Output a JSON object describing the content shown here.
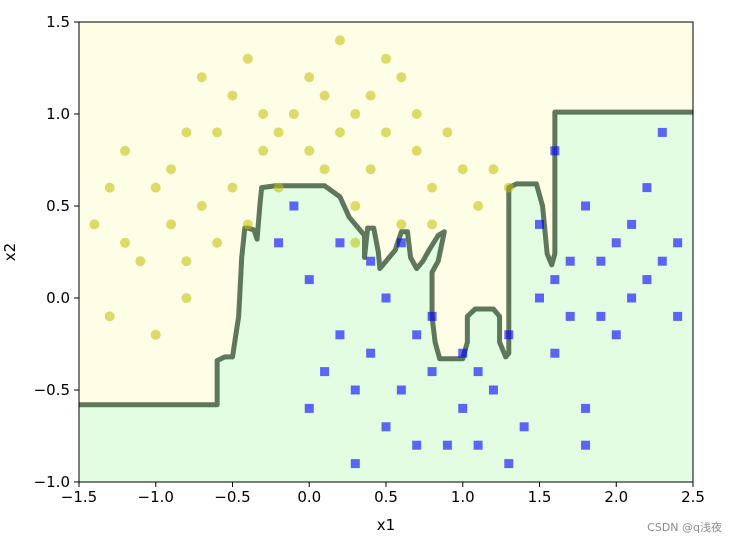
{
  "chart_data": {
    "type": "scatter",
    "title": "",
    "xlabel": "x1",
    "ylabel": "x2",
    "xlim": [
      -1.5,
      2.5
    ],
    "ylim": [
      -1.0,
      1.5
    ],
    "xticks": [
      "−1.5",
      "−1.0",
      "−0.5",
      "0.0",
      "0.5",
      "1.0",
      "1.5",
      "2.0",
      "2.5"
    ],
    "yticks": [
      "−1.0",
      "−0.5",
      "0.0",
      "0.5",
      "1.0",
      "1.5"
    ],
    "xtick_values": [
      -1.5,
      -1.0,
      -0.5,
      0.0,
      0.5,
      1.0,
      1.5,
      2.0,
      2.5
    ],
    "ytick_values": [
      -1.0,
      -0.5,
      0.0,
      0.5,
      1.0,
      1.5
    ],
    "grid": false,
    "legend": "none",
    "regions": [
      {
        "class": "0",
        "color": "#fefde6"
      },
      {
        "class": "1",
        "color": "#e2fde2"
      }
    ],
    "decision_boundary": {
      "color": "#2d4a2d",
      "points": [
        [
          -1.5,
          -0.58
        ],
        [
          -0.6,
          -0.58
        ],
        [
          -0.6,
          -0.34
        ],
        [
          -0.55,
          -0.32
        ],
        [
          -0.5,
          -0.32
        ],
        [
          -0.46,
          -0.1
        ],
        [
          -0.44,
          0.22
        ],
        [
          -0.42,
          0.38
        ],
        [
          -0.4,
          0.38
        ],
        [
          -0.36,
          0.37
        ],
        [
          -0.34,
          0.32
        ],
        [
          -0.32,
          0.52
        ],
        [
          -0.31,
          0.6
        ],
        [
          -0.22,
          0.61
        ],
        [
          0.1,
          0.61
        ],
        [
          0.2,
          0.55
        ],
        [
          0.26,
          0.44
        ],
        [
          0.34,
          0.36
        ],
        [
          0.36,
          0.34
        ],
        [
          0.36,
          0.22
        ],
        [
          0.38,
          0.38
        ],
        [
          0.42,
          0.38
        ],
        [
          0.45,
          0.25
        ],
        [
          0.46,
          0.16
        ],
        [
          0.5,
          0.2
        ],
        [
          0.56,
          0.26
        ],
        [
          0.6,
          0.36
        ],
        [
          0.64,
          0.36
        ],
        [
          0.66,
          0.22
        ],
        [
          0.7,
          0.16
        ],
        [
          0.74,
          0.2
        ],
        [
          0.78,
          0.26
        ],
        [
          0.84,
          0.34
        ],
        [
          0.88,
          0.36
        ],
        [
          0.84,
          0.2
        ],
        [
          0.8,
          0.14
        ],
        [
          0.8,
          0.04
        ],
        [
          0.8,
          -0.1
        ],
        [
          0.82,
          -0.24
        ],
        [
          0.85,
          -0.33
        ],
        [
          1.0,
          -0.33
        ],
        [
          1.03,
          -0.24
        ],
        [
          1.03,
          -0.1
        ],
        [
          1.08,
          -0.06
        ],
        [
          1.2,
          -0.06
        ],
        [
          1.24,
          -0.1
        ],
        [
          1.24,
          -0.24
        ],
        [
          1.28,
          -0.32
        ],
        [
          1.3,
          -0.3
        ],
        [
          1.3,
          0.3
        ],
        [
          1.3,
          0.6
        ],
        [
          1.35,
          0.62
        ],
        [
          1.48,
          0.62
        ],
        [
          1.52,
          0.5
        ],
        [
          1.55,
          0.24
        ],
        [
          1.58,
          0.18
        ],
        [
          1.6,
          0.24
        ],
        [
          1.6,
          0.62
        ],
        [
          1.6,
          1.01
        ],
        [
          1.8,
          1.01
        ],
        [
          2.5,
          1.01
        ]
      ]
    },
    "series": [
      {
        "marker": "circle",
        "color": "#bfbf00",
        "points": [
          [
            -0.8,
            0.9
          ],
          [
            -0.5,
            1.1
          ],
          [
            -0.3,
            0.8
          ],
          [
            0.0,
            1.2
          ],
          [
            -1.0,
            0.6
          ],
          [
            -1.2,
            0.8
          ],
          [
            -0.7,
            0.5
          ],
          [
            0.3,
            1.0
          ],
          [
            0.5,
            0.9
          ],
          [
            0.7,
            0.8
          ],
          [
            0.2,
            1.4
          ],
          [
            -0.9,
            0.4
          ],
          [
            0.4,
            0.7
          ],
          [
            -1.3,
            0.6
          ],
          [
            -0.2,
            0.9
          ],
          [
            -0.4,
            1.3
          ],
          [
            0.6,
            1.2
          ],
          [
            -0.6,
            0.3
          ],
          [
            0.1,
            0.7
          ],
          [
            -1.1,
            0.2
          ],
          [
            0.9,
            0.9
          ],
          [
            1.2,
            0.7
          ],
          [
            0.8,
            0.6
          ],
          [
            -0.8,
            0.0
          ],
          [
            -1.0,
            -0.2
          ],
          [
            -1.4,
            0.4
          ],
          [
            0.3,
            0.5
          ],
          [
            -0.3,
            1.0
          ],
          [
            0.0,
            0.8
          ],
          [
            1.0,
            0.7
          ],
          [
            -0.5,
            0.6
          ],
          [
            0.5,
            1.3
          ],
          [
            -0.7,
            1.2
          ],
          [
            -0.2,
            0.6
          ],
          [
            0.2,
            0.9
          ],
          [
            0.4,
            1.1
          ],
          [
            -1.2,
            0.3
          ],
          [
            -0.9,
            0.7
          ],
          [
            0.6,
            0.4
          ],
          [
            0.7,
            1.0
          ],
          [
            1.1,
            0.5
          ],
          [
            -0.6,
            0.9
          ],
          [
            0.1,
            1.1
          ],
          [
            -0.1,
            1.0
          ],
          [
            0.8,
            0.4
          ],
          [
            1.3,
            0.6
          ],
          [
            -1.3,
            -0.1
          ],
          [
            -0.4,
            0.4
          ],
          [
            0.3,
            0.3
          ],
          [
            -0.8,
            0.2
          ]
        ]
      },
      {
        "marker": "square",
        "color": "#0000ff",
        "points": [
          [
            1.6,
            0.8
          ],
          [
            1.8,
            0.5
          ],
          [
            2.0,
            0.3
          ],
          [
            2.2,
            0.6
          ],
          [
            1.7,
            0.2
          ],
          [
            1.9,
            -0.1
          ],
          [
            2.1,
            0.0
          ],
          [
            2.3,
            0.9
          ],
          [
            2.4,
            0.3
          ],
          [
            1.5,
            0.0
          ],
          [
            0.4,
            -0.3
          ],
          [
            0.6,
            -0.5
          ],
          [
            0.8,
            -0.4
          ],
          [
            1.0,
            -0.6
          ],
          [
            1.2,
            -0.5
          ],
          [
            0.2,
            -0.2
          ],
          [
            0.0,
            0.1
          ],
          [
            -0.2,
            0.3
          ],
          [
            0.5,
            0.0
          ],
          [
            0.7,
            -0.2
          ],
          [
            1.1,
            -0.4
          ],
          [
            1.4,
            -0.7
          ],
          [
            0.9,
            -0.8
          ],
          [
            0.3,
            -0.9
          ],
          [
            1.6,
            -0.3
          ],
          [
            1.8,
            -0.6
          ],
          [
            2.0,
            -0.2
          ],
          [
            2.2,
            0.1
          ],
          [
            2.4,
            -0.1
          ],
          [
            1.3,
            -0.2
          ],
          [
            0.1,
            -0.4
          ],
          [
            0.4,
            0.2
          ],
          [
            0.6,
            0.3
          ],
          [
            0.2,
            0.3
          ],
          [
            -0.1,
            0.5
          ],
          [
            1.0,
            -0.3
          ],
          [
            1.5,
            0.4
          ],
          [
            1.7,
            -0.1
          ],
          [
            1.9,
            0.2
          ],
          [
            0.8,
            -0.1
          ],
          [
            0.5,
            -0.7
          ],
          [
            0.7,
            -0.8
          ],
          [
            1.3,
            -0.9
          ],
          [
            1.8,
            -0.8
          ],
          [
            2.1,
            0.4
          ],
          [
            0.0,
            -0.6
          ],
          [
            0.3,
            -0.5
          ],
          [
            1.1,
            -0.8
          ],
          [
            1.6,
            0.1
          ],
          [
            2.3,
            0.2
          ]
        ]
      }
    ]
  },
  "watermark": "CSDN @q浅夜"
}
